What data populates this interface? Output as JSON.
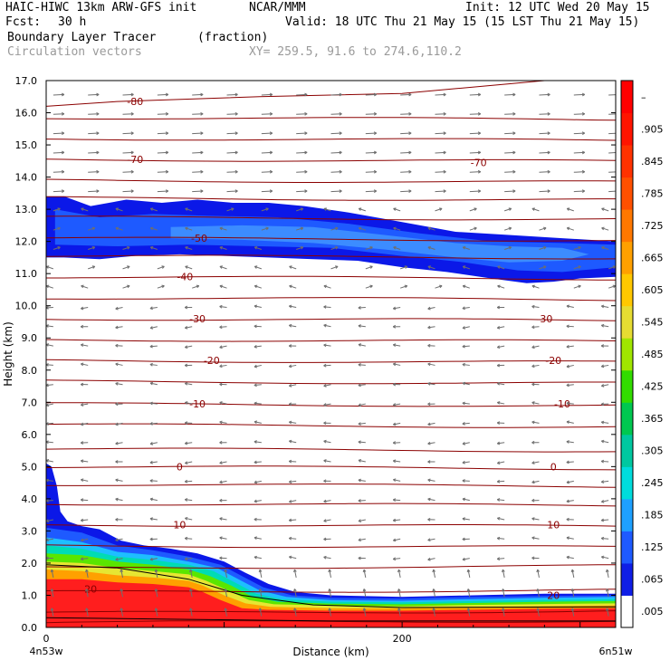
{
  "header": {
    "model": "HAIC-HIWC 13km ARW-GFS init",
    "org": "NCAR/MMM",
    "init": "Init: 12 UTC Wed 20 May 15",
    "fcst_label": "Fcst:",
    "fcst_value": "30 h",
    "valid": "Valid: 18 UTC Thu 21 May 15 (15 LST Thu 21 May 15)",
    "field": "Boundary Layer Tracer",
    "field_units": "(fraction)",
    "overlay": "Circulation vectors",
    "xy": "XY= 259.5, 91.6 to 274.6,110.2"
  },
  "chart_data": {
    "type": "heatmap",
    "title": "Boundary Layer Tracer",
    "units": "(fraction)",
    "xlabel": "Distance (km)",
    "ylabel": "Height (km)",
    "xlim": [
      0,
      320
    ],
    "ylim": [
      0,
      17
    ],
    "x_ticks": [
      0,
      200
    ],
    "x_end_labels": [
      "4n53w",
      "6n51w"
    ],
    "y_ticks": [
      "0.0",
      "1.0",
      "2.0",
      "3.0",
      "4.0",
      "5.0",
      "6.0",
      "7.0",
      "8.0",
      "9.0",
      "10.0",
      "11.0",
      "12.0",
      "13.0",
      "14.0",
      "15.0",
      "16.0",
      "17.0"
    ],
    "colorbar": {
      "labels": [
        ".005",
        ".065",
        ".125",
        ".185",
        ".245",
        ".305",
        ".365",
        ".425",
        ".485",
        ".545",
        ".605",
        ".665",
        ".725",
        ".785",
        ".845",
        ".905",
        "–"
      ],
      "colors": [
        "#ffffff",
        "#0f1ee6",
        "#1e5aff",
        "#1ea0ff",
        "#00dcdc",
        "#00c8a0",
        "#00c850",
        "#32dc00",
        "#a0e600",
        "#e6dc32",
        "#ffc800",
        "#ffa000",
        "#ff7800",
        "#ff5000",
        "#ff3200",
        "#ff1400",
        "#ff0000"
      ]
    },
    "tracer_colors": {
      "blue_dark": "#0b18e8",
      "blue_mid": "#1e5aff",
      "blue_light": "#3c8cff",
      "cyan": "#1ebeff",
      "teal": "#00dcb4",
      "green": "#5ae600",
      "yellow": "#e6e632",
      "orange": "#ffa000",
      "red": "#ff1e1e"
    },
    "temperature_contours": {
      "color": "#8b0000",
      "labels": [
        {
          "text": "-80",
          "x": 50,
          "y": 16.35
        },
        {
          "text": "-70",
          "x": 50,
          "y": 14.55
        },
        {
          "text": "-70",
          "x": 243,
          "y": 14.45
        },
        {
          "text": "-50",
          "x": 86,
          "y": 12.1
        },
        {
          "text": "-40",
          "x": 78,
          "y": 10.9
        },
        {
          "text": "-30",
          "x": 85,
          "y": 9.6
        },
        {
          "text": "-30",
          "x": 280,
          "y": 9.6
        },
        {
          "text": "-20",
          "x": 93,
          "y": 8.3
        },
        {
          "text": "-20",
          "x": 285,
          "y": 8.3
        },
        {
          "text": "-10",
          "x": 85,
          "y": 6.95
        },
        {
          "text": "-10",
          "x": 290,
          "y": 6.95
        },
        {
          "text": "0",
          "x": 75,
          "y": 5.0
        },
        {
          "text": "0",
          "x": 285,
          "y": 5.0
        },
        {
          "text": "10",
          "x": 75,
          "y": 3.2
        },
        {
          "text": "10",
          "x": 285,
          "y": 3.2
        },
        {
          "text": "20",
          "x": 25,
          "y": 1.2
        },
        {
          "text": "20",
          "x": 285,
          "y": 1.0
        }
      ]
    },
    "vectors": {
      "color": "#6e6e6e"
    }
  }
}
